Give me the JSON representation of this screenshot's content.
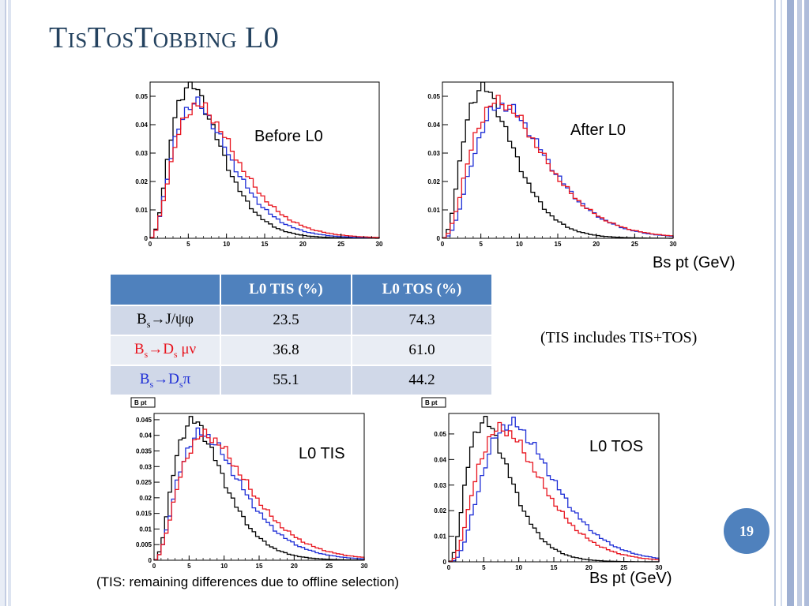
{
  "slide": {
    "title": "TisTosTobbing L0",
    "page_number": "19"
  },
  "colors": {
    "title": "#24425f",
    "accent": "#4f81bd",
    "badge": "#4f81bd",
    "row_dark": "#d0d8e8",
    "row_light": "#e9edf4",
    "black_series": "#000000",
    "red_series": "#e8141e",
    "blue_series": "#1f2fd6"
  },
  "labels": {
    "before": "Before L0",
    "after": "After L0",
    "l0tis": "L0 TIS",
    "l0tos": "L0 TOS",
    "axis_top": "Bs pt (GeV)",
    "axis_bottom": "Bs pt (GeV)",
    "tis_includes": "(TIS includes TIS+TOS)",
    "tis_remaining": "(TIS: remaining differences due to offline selection)"
  },
  "table": {
    "headers": [
      "",
      "L0 TIS (%)",
      "L0 TOS (%)"
    ],
    "rows": [
      {
        "main": "B",
        "sub1": "s",
        "arrow": "→",
        "rest": "J/ψφ",
        "sub2": "",
        "tail": "",
        "color": "#000000",
        "tis": "23.5",
        "tos": "74.3"
      },
      {
        "main": "B",
        "sub1": "s",
        "arrow": "→",
        "rest": "D",
        "sub2": "s",
        "tail": " μν",
        "color": "#e8141e",
        "tis": "36.8",
        "tos": "61.0"
      },
      {
        "main": "B",
        "sub1": "s",
        "arrow": "→",
        "rest": "D",
        "sub2": "s",
        "tail": "π",
        "color": "#1f2fd6",
        "tis": "55.1",
        "tos": "44.2"
      }
    ]
  },
  "chart_data": [
    {
      "type": "line",
      "title": "",
      "xlabel": "Bs pt (GeV)",
      "ylabel": "",
      "xlim": [
        0,
        30
      ],
      "ylim": [
        0,
        0.055
      ],
      "xticks": [
        0,
        5,
        10,
        15,
        20,
        25,
        30
      ],
      "yticks": [
        0,
        0.01,
        0.02,
        0.03,
        0.04,
        0.05
      ],
      "ytick_labels": [
        "0",
        "0.01",
        "0.02",
        "0.03",
        "0.04",
        "0.05"
      ],
      "stat_box": "",
      "series": [
        {
          "color": "#000000",
          "mu": 5.2,
          "k": 2.62,
          "scale": 0.054
        },
        {
          "color": "#1f2fd6",
          "mu": 5.8,
          "k": 2.39,
          "scale": 0.0475
        },
        {
          "color": "#e8141e",
          "mu": 6.2,
          "k": 2.26,
          "scale": 0.0468
        }
      ]
    },
    {
      "type": "line",
      "title": "",
      "xlabel": "Bs pt (GeV)",
      "ylabel": "",
      "xlim": [
        0,
        30
      ],
      "ylim": [
        0,
        0.055
      ],
      "xticks": [
        0,
        5,
        10,
        15,
        20,
        25,
        30
      ],
      "yticks": [
        0,
        0.01,
        0.02,
        0.03,
        0.04,
        0.05
      ],
      "ytick_labels": [
        "0",
        "0.01",
        "0.02",
        "0.03",
        "0.04",
        "0.05"
      ],
      "stat_box": "",
      "series": [
        {
          "color": "#000000",
          "mu": 5.2,
          "k": 2.62,
          "scale": 0.053
        },
        {
          "color": "#1f2fd6",
          "mu": 7.8,
          "k": 2.8,
          "scale": 0.0468
        },
        {
          "color": "#e8141e",
          "mu": 7.3,
          "k": 2.4,
          "scale": 0.048
        }
      ]
    },
    {
      "type": "line",
      "title": "",
      "xlabel": "",
      "ylabel": "",
      "xlim": [
        0,
        30
      ],
      "ylim": [
        0,
        0.047
      ],
      "xticks": [
        0,
        5,
        10,
        15,
        20,
        25,
        30
      ],
      "yticks": [
        0,
        0.005,
        0.01,
        0.015,
        0.02,
        0.025,
        0.03,
        0.035,
        0.04,
        0.045
      ],
      "ytick_labels": [
        "0",
        "0.005",
        "0.01",
        "0.015",
        "0.02",
        "0.025",
        "0.03",
        "0.035",
        "0.04",
        "0.045"
      ],
      "stat_box": "B pt",
      "series": [
        {
          "color": "#000000",
          "mu": 5.5,
          "k": 2.5,
          "scale": 0.0445
        },
        {
          "color": "#1f2fd6",
          "mu": 6.8,
          "k": 2.35,
          "scale": 0.0405
        },
        {
          "color": "#e8141e",
          "mu": 7.3,
          "k": 2.25,
          "scale": 0.04
        }
      ]
    },
    {
      "type": "line",
      "title": "",
      "xlabel": "Bs pt (GeV)",
      "ylabel": "",
      "xlim": [
        0,
        30
      ],
      "ylim": [
        0,
        0.058
      ],
      "xticks": [
        0,
        5,
        10,
        15,
        20,
        25,
        30
      ],
      "yticks": [
        0,
        0.01,
        0.02,
        0.03,
        0.04,
        0.05
      ],
      "ytick_labels": [
        "0",
        "0.01",
        "0.02",
        "0.03",
        "0.04",
        "0.05"
      ],
      "stat_box": "B pt",
      "series": [
        {
          "color": "#000000",
          "mu": 5.0,
          "k": 2.62,
          "scale": 0.055
        },
        {
          "color": "#1f2fd6",
          "mu": 8.8,
          "k": 3.1,
          "scale": 0.054
        },
        {
          "color": "#e8141e",
          "mu": 7.5,
          "k": 2.6,
          "scale": 0.052
        }
      ]
    }
  ]
}
